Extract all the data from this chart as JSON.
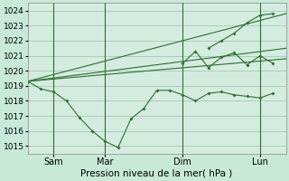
{
  "title": "Pression niveau de la mer( hPa )",
  "ylim": [
    1014.5,
    1024.5
  ],
  "bg_color": "#c8e8d8",
  "plot_bg_color": "#d4ece0",
  "line_color": "#2d6e2d",
  "grid_color": "#9dbfb0",
  "xtick_labels": [
    "Sam",
    "Mar",
    "Dim",
    "Lun"
  ],
  "xtick_positions": [
    2,
    6,
    12,
    18
  ],
  "vline_positions": [
    2,
    6,
    12,
    18
  ],
  "xlim": [
    0,
    20
  ],
  "detailed_line": {
    "x": [
      0,
      1,
      2,
      3,
      4,
      5,
      6,
      7,
      8,
      9,
      10,
      11,
      12,
      13,
      14,
      15,
      16,
      17,
      18,
      19
    ],
    "y": [
      1019.3,
      1018.8,
      1018.6,
      1018.0,
      1016.9,
      1016.0,
      1015.3,
      1014.9,
      1016.8,
      1017.5,
      1018.7,
      1018.7,
      1018.4,
      1018.0,
      1018.5,
      1018.6,
      1018.4,
      1018.3,
      1018.2,
      1018.5
    ]
  },
  "trend_low": {
    "x": [
      0,
      20
    ],
    "y": [
      1019.3,
      1020.8
    ]
  },
  "trend_mid": {
    "x": [
      0,
      20
    ],
    "y": [
      1019.3,
      1021.5
    ]
  },
  "trend_high": {
    "x": [
      0,
      20
    ],
    "y": [
      1019.3,
      1023.8
    ]
  },
  "forecast_measured": {
    "x": [
      12,
      13,
      14,
      15,
      16,
      17,
      18,
      19
    ],
    "y": [
      1020.5,
      1021.3,
      1020.2,
      1020.9,
      1021.2,
      1020.4,
      1021.0,
      1020.5
    ]
  },
  "forecast_upper": {
    "x": [
      14,
      15,
      16,
      17,
      18,
      19
    ],
    "y": [
      1021.5,
      1022.0,
      1022.5,
      1023.2,
      1023.7,
      1023.8
    ]
  }
}
